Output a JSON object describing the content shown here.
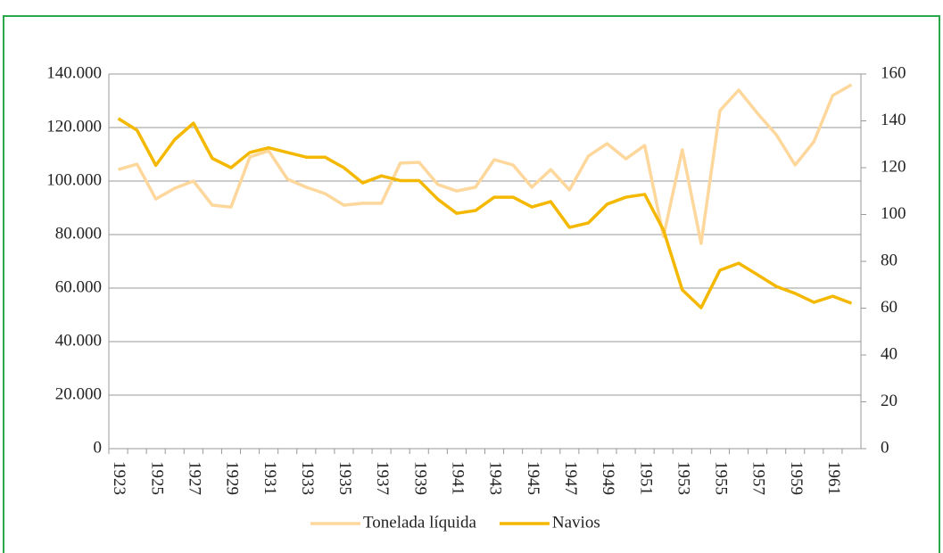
{
  "chart_data": {
    "type": "line",
    "categories": [
      "1923",
      null,
      "1925",
      null,
      "1927",
      null,
      "1929",
      null,
      "1931",
      null,
      "1933",
      null,
      "1935",
      null,
      "1937",
      null,
      "1939",
      null,
      "1941",
      null,
      "1943",
      null,
      "1945",
      null,
      "1947",
      null,
      "1949",
      null,
      "1951",
      null,
      "1953",
      null,
      "1955",
      null,
      "1957",
      null,
      "1959",
      null,
      "1961",
      null
    ],
    "series": [
      {
        "name": "Tonelada líquida",
        "color": "#fdd79b",
        "axis": "y",
        "values": [
          104300,
          106300,
          93300,
          97300,
          100000,
          91000,
          90300,
          109000,
          111300,
          100700,
          97700,
          95300,
          91000,
          91700,
          91700,
          106700,
          107000,
          98700,
          96300,
          97700,
          108000,
          106000,
          97700,
          104300,
          96700,
          109300,
          114000,
          108300,
          113300,
          79300,
          111700,
          76700,
          126300,
          134000,
          125300,
          117300,
          106000,
          114700,
          132000,
          136000
        ]
      },
      {
        "name": "Navios",
        "color": "#f5b800",
        "axis": "y2",
        "values": [
          141,
          136,
          121,
          132,
          139,
          124,
          120,
          126.5,
          128.5,
          126.5,
          124.5,
          124.5,
          120,
          113.5,
          116.5,
          114.5,
          114.5,
          106.5,
          100.5,
          101.7,
          107.4,
          107.4,
          103.2,
          105.5,
          94.5,
          96.4,
          104.4,
          107.4,
          108.6,
          93.3,
          67.8,
          60.2,
          76.2,
          79.2,
          74.3,
          69.3,
          66.3,
          62.5,
          65.1,
          62.1
        ]
      }
    ],
    "ylim": [
      0,
      140000
    ],
    "yticks": [
      0,
      {
        "value": 20000,
        "label": "20.000"
      },
      {
        "value": 40000,
        "label": "40.000"
      },
      {
        "value": 60000,
        "label": "60.000"
      },
      {
        "value": 80000,
        "label": "80.000"
      },
      {
        "value": 100000,
        "label": "100.000"
      },
      {
        "value": 120000,
        "label": "120.000"
      },
      {
        "value": 140000,
        "label": "140.000"
      }
    ],
    "y2lim": [
      0,
      160
    ],
    "y2ticks": [
      0,
      20,
      40,
      60,
      80,
      100,
      120,
      140,
      160
    ],
    "grid": true,
    "legend": "bottom"
  }
}
